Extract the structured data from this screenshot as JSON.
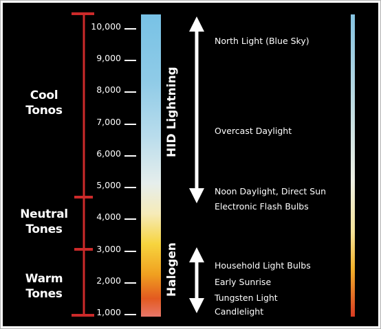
{
  "tones": [
    {
      "key": "cool",
      "line1": "Cool",
      "line2": "Tonos"
    },
    {
      "key": "neutral",
      "line1": "Neutral",
      "line2": "Tones"
    },
    {
      "key": "warm",
      "line1": "Warm",
      "line2": "Tones"
    }
  ],
  "scale": {
    "ticks": [
      "10,000",
      "9,000",
      "8,000",
      "7,000",
      "6,000",
      "5,000",
      "4,000",
      "3,000",
      "2,000",
      "1,000"
    ],
    "tick_values": [
      10000,
      9000,
      8000,
      7000,
      6000,
      5000,
      4000,
      3000,
      2000,
      1000
    ],
    "range": [
      1000,
      10000
    ],
    "boundaries": [
      5000,
      3000
    ]
  },
  "sources": {
    "hid": "HID Lightning",
    "halogen": "Halogen"
  },
  "lighting": [
    {
      "label": "North Light (Blue Sky)"
    },
    {
      "label": "Overcast Daylight"
    },
    {
      "label": "Noon Daylight, Direct Sun"
    },
    {
      "label": "Electronic Flash Bulbs"
    },
    {
      "label": "Household Light Bulbs"
    },
    {
      "label": "Early Sunrise"
    },
    {
      "label": "Tungsten Light"
    },
    {
      "label": "Candlelight"
    }
  ],
  "colors": {
    "background": "#000000",
    "bracket": "#cc2a2a",
    "text": "#ffffff",
    "gradient": [
      "#78c2e6",
      "#9ad0e8",
      "#c9e4ee",
      "#eef0ea",
      "#f6eab0",
      "#f7d23a",
      "#f0a01e",
      "#e35a20",
      "#d43420"
    ]
  }
}
